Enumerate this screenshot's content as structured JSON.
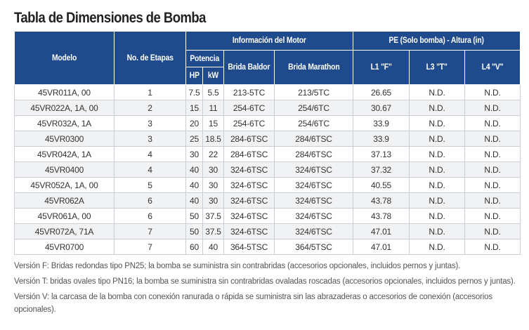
{
  "title": "Tabla de Dimensiones de Bomba",
  "headers": {
    "modelo": "Modelo",
    "etapas": "No. de Etapas",
    "info_motor": "Información del Motor",
    "potencia": "Potencia",
    "hp": "HP",
    "kw": "kW",
    "brida_baldor": "Brida Baldor",
    "brida_marathon": "Brida Marathon",
    "pe_altura": "PE (Solo bomba) - Altura (in)",
    "l1": "L1 \"F\"",
    "l3": "L3 \"T\"",
    "l4": "L4 \"V\""
  },
  "rows": [
    {
      "modelo": "45VR011A, 00",
      "etapas": "1",
      "hp": "7.5",
      "kw": "5.5",
      "baldor": "213-5TC",
      "marathon": "213/5TC",
      "l1": "26.65",
      "l3": "N.D.",
      "l4": "N.D."
    },
    {
      "modelo": "45VR022A, 1A, 00",
      "etapas": "2",
      "hp": "15",
      "kw": "11",
      "baldor": "254-6TC",
      "marathon": "254/6TC",
      "l1": "30.67",
      "l3": "N.D.",
      "l4": "N.D."
    },
    {
      "modelo": "45VR032A, 1A",
      "etapas": "3",
      "hp": "20",
      "kw": "15",
      "baldor": "254-6TC",
      "marathon": "254/6TC",
      "l1": "33.9",
      "l3": "N.D.",
      "l4": "N.D."
    },
    {
      "modelo": "45VR0300",
      "etapas": "3",
      "hp": "25",
      "kw": "18.5",
      "baldor": "284-6TSC",
      "marathon": "284/6TSC",
      "l1": "33.9",
      "l3": "N.D.",
      "l4": "N.D."
    },
    {
      "modelo": "45VR042A, 1A",
      "etapas": "4",
      "hp": "30",
      "kw": "22",
      "baldor": "284-6TSC",
      "marathon": "284/6TSC",
      "l1": "37.13",
      "l3": "N.D.",
      "l4": "N.D."
    },
    {
      "modelo": "45VR0400",
      "etapas": "4",
      "hp": "40",
      "kw": "30",
      "baldor": "324-6TSC",
      "marathon": "324/6TSC",
      "l1": "37.32",
      "l3": "N.D.",
      "l4": "N.D."
    },
    {
      "modelo": "45VR052A, 1A, 00",
      "etapas": "5",
      "hp": "40",
      "kw": "30",
      "baldor": "324-6TSC",
      "marathon": "324/6TSC",
      "l1": "40.55",
      "l3": "N.D.",
      "l4": "N.D."
    },
    {
      "modelo": "45VR062A",
      "etapas": "6",
      "hp": "40",
      "kw": "30",
      "baldor": "324-6TSC",
      "marathon": "324/6TSC",
      "l1": "43.78",
      "l3": "N.D.",
      "l4": "N.D."
    },
    {
      "modelo": "45VR061A, 00",
      "etapas": "6",
      "hp": "50",
      "kw": "37.5",
      "baldor": "324-6TSC",
      "marathon": "324/6TSC",
      "l1": "43.78",
      "l3": "N.D.",
      "l4": "N.D."
    },
    {
      "modelo": "45VR072A, 71A",
      "etapas": "7",
      "hp": "50",
      "kw": "37.5",
      "baldor": "324-6TSC",
      "marathon": "324/6TSC",
      "l1": "47.01",
      "l3": "N.D.",
      "l4": "N.D."
    },
    {
      "modelo": "45VR0700",
      "etapas": "7",
      "hp": "60",
      "kw": "40",
      "baldor": "364-5TSC",
      "marathon": "364/5TSC",
      "l1": "47.01",
      "l3": "N.D.",
      "l4": "N.D."
    }
  ],
  "notes": [
    "Versión F: Bridas redondas tipo PN25; la bomba se suministra sin contrabridas (accesorios opcionales, incluidos pernos y juntas).",
    "Versión T: bridas ovales tipo PN16; la bomba se suministra sin contrabridas ovaladas roscadas (accesorios opcionales, incluidos pernos y juntas).",
    "Versión V: la carcasa de la bomba con conexión ranurada o rápida se suministra sin las abrazaderas o accesorios de conexión (accesorios opcionales)."
  ],
  "colors": {
    "header_bg": "#1f4a8c",
    "header_text": "#ffffff",
    "row_alt": "#f1f2f4",
    "border": "#c9ced6"
  }
}
